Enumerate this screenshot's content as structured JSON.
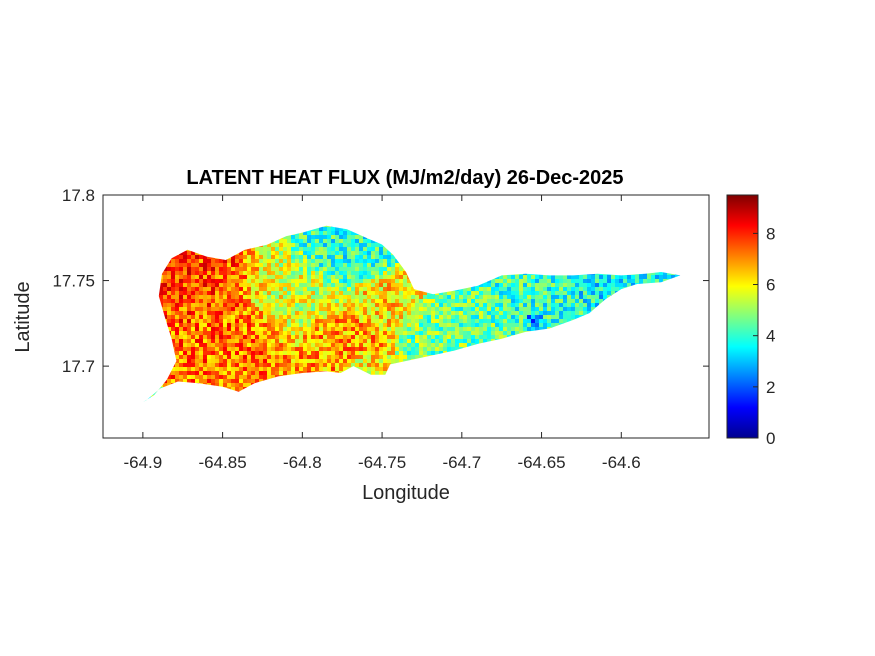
{
  "chart_data": {
    "type": "heatmap",
    "title": "LATENT HEAT FLUX (MJ/m2/day) 26-Dec-2025",
    "xlabel": "Longitude",
    "ylabel": "Latitude",
    "xlim": [
      -64.925,
      -64.545
    ],
    "ylim": [
      17.658,
      17.8
    ],
    "xticks": [
      -64.9,
      -64.85,
      -64.8,
      -64.75,
      -64.7,
      -64.65,
      -64.6
    ],
    "xtick_labels": [
      "-64.9",
      "-64.85",
      "-64.8",
      "-64.75",
      "-64.7",
      "-64.65",
      "-64.6"
    ],
    "yticks": [
      17.7,
      17.75,
      17.8
    ],
    "ytick_labels": [
      "17.7",
      "17.75",
      "17.8"
    ],
    "colorbar": {
      "colormap": "jet",
      "clim": [
        0,
        9.5
      ],
      "ticks": [
        0,
        2,
        4,
        6,
        8
      ],
      "tick_labels": [
        "0",
        "2",
        "4",
        "6",
        "8"
      ]
    },
    "island_outline": [
      [
        -64.9,
        17.679
      ],
      [
        -64.893,
        17.683
      ],
      [
        -64.885,
        17.692
      ],
      [
        -64.879,
        17.703
      ],
      [
        -64.882,
        17.716
      ],
      [
        -64.886,
        17.728
      ],
      [
        -64.89,
        17.741
      ],
      [
        -64.888,
        17.754
      ],
      [
        -64.882,
        17.763
      ],
      [
        -64.872,
        17.768
      ],
      [
        -64.86,
        17.764
      ],
      [
        -64.848,
        17.762
      ],
      [
        -64.836,
        17.768
      ],
      [
        -64.822,
        17.771
      ],
      [
        -64.81,
        17.776
      ],
      [
        -64.8,
        17.778
      ],
      [
        -64.785,
        17.782
      ],
      [
        -64.772,
        17.78
      ],
      [
        -64.76,
        17.775
      ],
      [
        -64.75,
        17.771
      ],
      [
        -64.743,
        17.765
      ],
      [
        -64.735,
        17.755
      ],
      [
        -64.73,
        17.745
      ],
      [
        -64.718,
        17.742
      ],
      [
        -64.705,
        17.744
      ],
      [
        -64.69,
        17.747
      ],
      [
        -64.675,
        17.753
      ],
      [
        -64.66,
        17.754
      ],
      [
        -64.645,
        17.753
      ],
      [
        -64.63,
        17.753
      ],
      [
        -64.615,
        17.754
      ],
      [
        -64.6,
        17.753
      ],
      [
        -64.585,
        17.754
      ],
      [
        -64.575,
        17.755
      ],
      [
        -64.563,
        17.753
      ],
      [
        -64.575,
        17.749
      ],
      [
        -64.59,
        17.748
      ],
      [
        -64.6,
        17.745
      ],
      [
        -64.61,
        17.739
      ],
      [
        -64.62,
        17.731
      ],
      [
        -64.63,
        17.727
      ],
      [
        -64.645,
        17.722
      ],
      [
        -64.66,
        17.72
      ],
      [
        -64.675,
        17.716
      ],
      [
        -64.69,
        17.713
      ],
      [
        -64.705,
        17.709
      ],
      [
        -64.72,
        17.706
      ],
      [
        -64.735,
        17.703
      ],
      [
        -64.745,
        17.701
      ],
      [
        -64.748,
        17.695
      ],
      [
        -64.757,
        17.695
      ],
      [
        -64.768,
        17.7
      ],
      [
        -64.776,
        17.696
      ],
      [
        -64.785,
        17.697
      ],
      [
        -64.8,
        17.696
      ],
      [
        -64.815,
        17.694
      ],
      [
        -64.83,
        17.69
      ],
      [
        -64.84,
        17.685
      ],
      [
        -64.85,
        17.688
      ],
      [
        -64.865,
        17.69
      ],
      [
        -64.878,
        17.691
      ],
      [
        -64.889,
        17.687
      ],
      [
        -64.898,
        17.68
      ]
    ],
    "value_regions": [
      {
        "center": [
          -64.862,
          17.747
        ],
        "radius": [
          0.024,
          0.014
        ],
        "value": 7.6
      },
      {
        "center": [
          -64.847,
          17.726
        ],
        "radius": [
          0.02,
          0.012
        ],
        "value": 7.2
      },
      {
        "center": [
          -64.812,
          17.744
        ],
        "radius": [
          0.02,
          0.014
        ],
        "value": 5.6
      },
      {
        "center": [
          -64.775,
          17.716
        ],
        "radius": [
          0.014,
          0.01
        ],
        "value": 6.8
      },
      {
        "center": [
          -64.745,
          17.738
        ],
        "radius": [
          0.014,
          0.01
        ],
        "value": 6.2
      },
      {
        "center": [
          -64.76,
          17.7
        ],
        "radius": [
          0.008,
          0.005
        ],
        "value": 6.0
      },
      {
        "center": [
          -64.775,
          17.764
        ],
        "radius": [
          0.018,
          0.01
        ],
        "value": 4.0
      },
      {
        "center": [
          -64.7,
          17.725
        ],
        "radius": [
          0.02,
          0.012
        ],
        "value": 4.6
      },
      {
        "center": [
          -64.66,
          17.738
        ],
        "radius": [
          0.025,
          0.012
        ],
        "value": 4.1
      },
      {
        "center": [
          -64.605,
          17.745
        ],
        "radius": [
          0.022,
          0.008
        ],
        "value": 3.6
      },
      {
        "center": [
          -64.655,
          17.728
        ],
        "radius": [
          0.004,
          0.003
        ],
        "value": 1.5
      }
    ],
    "grid": false
  }
}
